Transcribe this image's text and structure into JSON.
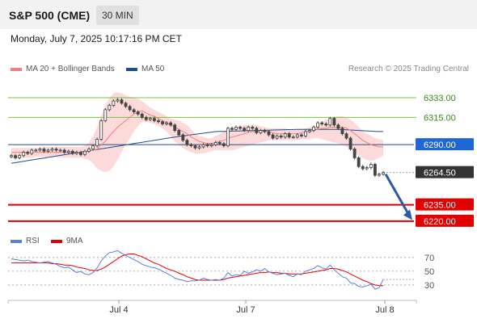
{
  "header": {
    "title": "S&P 500 (CME)",
    "timeframe": "30 MIN"
  },
  "datetime": "Monday, July 7, 2025 10:17:16 PM CET",
  "legend": [
    {
      "label": "MA 20 + Bollinger Bands",
      "color": "#f08080"
    },
    {
      "label": "MA 50",
      "color": "#1f4e8c"
    }
  ],
  "credit": "Research © 2025 Trading Central",
  "rsi_legend": [
    {
      "label": "RSI",
      "color": "#5b7fd6"
    },
    {
      "label": "9MA",
      "color": "#e00000"
    }
  ],
  "colors": {
    "support": "#e00000",
    "resistance": "#7cc242",
    "ma50": "#1f4e8c",
    "ma20": "#f08080",
    "band": "#fbd4d4",
    "candle": "#444444"
  },
  "chart_data": {
    "type": "candlestick",
    "yaxis_range": [
      6214,
      6350
    ],
    "x_ticks": [
      "Jul 4",
      "Jul 7",
      "Jul 8"
    ],
    "levels": [
      {
        "value": 6333.0,
        "label": "6333.00",
        "kind": "resistance"
      },
      {
        "value": 6315.0,
        "label": "6315.00",
        "kind": "resistance"
      },
      {
        "value": 6290.0,
        "label": "6290.00",
        "kind": "pivot"
      },
      {
        "value": 6264.5,
        "label": "6264.50",
        "kind": "last"
      },
      {
        "value": 6235.0,
        "label": "6235.00",
        "kind": "support"
      },
      {
        "value": 6220.0,
        "label": "6220.00",
        "kind": "support"
      }
    ],
    "close": [
      6280,
      6278,
      6280,
      6283,
      6282,
      6285,
      6285,
      6286,
      6284,
      6285,
      6286,
      6285,
      6285,
      6283,
      6284,
      6282,
      6283,
      6281,
      6284,
      6286,
      6289,
      6295,
      6312,
      6322,
      6326,
      6330,
      6331,
      6328,
      6325,
      6322,
      6320,
      6318,
      6315,
      6313,
      6314,
      6312,
      6311,
      6309,
      6310,
      6308,
      6303,
      6299,
      6294,
      6290,
      6289,
      6287,
      6288,
      6290,
      6289,
      6290,
      6292,
      6291,
      6289,
      6305,
      6304,
      6306,
      6305,
      6303,
      6306,
      6305,
      6301,
      6303,
      6302,
      6299,
      6296,
      6298,
      6297,
      6300,
      6297,
      6297,
      6299,
      6298,
      6302,
      6303,
      6306,
      6310,
      6309,
      6308,
      6314,
      6308,
      6305,
      6300,
      6296,
      6286,
      6278,
      6270,
      6268,
      6269,
      6272,
      6262,
      6263,
      6264.5
    ],
    "ma20": [
      6283,
      6283,
      6283,
      6283,
      6283,
      6283,
      6283,
      6283,
      6283,
      6283,
      6283,
      6283,
      6283,
      6283,
      6283,
      6283,
      6283,
      6283,
      6283,
      6284,
      6285,
      6286,
      6290,
      6293,
      6298,
      6302,
      6306,
      6309,
      6312,
      6315,
      6318,
      6320,
      6321,
      6319,
      6317,
      6316,
      6314,
      6312,
      6310,
      6308,
      6306,
      6304,
      6302,
      6300,
      6297,
      6295,
      6293,
      6292,
      6291,
      6291,
      6292,
      6293,
      6294,
      6296,
      6297,
      6298,
      6299,
      6300,
      6301,
      6302,
      6302,
      6302,
      6302,
      6302,
      6301,
      6300,
      6300,
      6300,
      6300,
      6300,
      6300,
      6301,
      6302,
      6302,
      6303,
      6304,
      6305,
      6305,
      6306,
      6306,
      6306,
      6306,
      6305,
      6303,
      6300,
      6297,
      6294,
      6292,
      6290,
      6289,
      6288,
      6288
    ],
    "bb_upper": [
      6287,
      6287,
      6287,
      6287,
      6287,
      6287,
      6287,
      6287,
      6288,
      6288,
      6288,
      6288,
      6288,
      6288,
      6288,
      6288,
      6288,
      6288,
      6289,
      6292,
      6298,
      6306,
      6316,
      6326,
      6333,
      6337,
      6338,
      6337,
      6335,
      6334,
      6333,
      6332,
      6330,
      6327,
      6324,
      6322,
      6320,
      6318,
      6316,
      6314,
      6313,
      6312,
      6310,
      6308,
      6304,
      6300,
      6298,
      6297,
      6296,
      6296,
      6298,
      6300,
      6302,
      6304,
      6305,
      6306,
      6307,
      6308,
      6308,
      6308,
      6308,
      6307,
      6306,
      6305,
      6305,
      6305,
      6305,
      6305,
      6304,
      6304,
      6304,
      6304,
      6305,
      6306,
      6307,
      6309,
      6311,
      6313,
      6314,
      6315,
      6316,
      6316,
      6315,
      6313,
      6310,
      6306,
      6303,
      6300,
      6298,
      6296,
      6295,
      6294
    ],
    "bb_lower": [
      6278,
      6278,
      6278,
      6278,
      6278,
      6278,
      6279,
      6279,
      6279,
      6279,
      6279,
      6279,
      6278,
      6278,
      6278,
      6278,
      6278,
      6278,
      6277,
      6276,
      6273,
      6268,
      6266,
      6265,
      6266,
      6270,
      6276,
      6283,
      6290,
      6296,
      6302,
      6307,
      6311,
      6311,
      6310,
      6309,
      6307,
      6305,
      6302,
      6298,
      6293,
      6290,
      6287,
      6285,
      6283,
      6282,
      6282,
      6282,
      6283,
      6284,
      6285,
      6285,
      6285,
      6285,
      6285,
      6286,
      6287,
      6288,
      6289,
      6290,
      6291,
      6292,
      6293,
      6294,
      6294,
      6294,
      6294,
      6294,
      6294,
      6294,
      6294,
      6295,
      6295,
      6295,
      6296,
      6296,
      6295,
      6294,
      6293,
      6292,
      6291,
      6290,
      6288,
      6286,
      6283,
      6280,
      6278,
      6276,
      6275,
      6276,
      6278,
      6280
    ],
    "ma50": [
      6273,
      6273.6,
      6274.2,
      6274.8,
      6275.4,
      6276,
      6276.6,
      6277.2,
      6277.8,
      6278.4,
      6279,
      6279.6,
      6280.2,
      6280.8,
      6281.4,
      6282,
      6282.6,
      6283.2,
      6283.8,
      6284.4,
      6285,
      6285.6,
      6286.2,
      6286.8,
      6287.4,
      6288,
      6288.6,
      6289.2,
      6289.8,
      6290.4,
      6291,
      6291.6,
      6292.2,
      6292.8,
      6293.4,
      6294,
      6294.6,
      6295.2,
      6295.8,
      6296.4,
      6297,
      6297.5,
      6298,
      6298.5,
      6299,
      6299.5,
      6300,
      6300.5,
      6301,
      6301.5,
      6302,
      6302.1,
      6302.2,
      6302.3,
      6302.4,
      6302.5,
      6302.6,
      6302.7,
      6302.8,
      6302.9,
      6303,
      6303.1,
      6303.2,
      6303.3,
      6303.4,
      6303.5,
      6303.6,
      6303.7,
      6303.8,
      6303.9,
      6304,
      6304,
      6304,
      6304,
      6304,
      6304,
      6304,
      6304,
      6304,
      6304,
      6304,
      6303.8,
      6303.6,
      6303.4,
      6303.2,
      6303,
      6302.8,
      6302.6,
      6302.4,
      6302.2,
      6302,
      6302
    ],
    "rsi_levels": [
      70,
      50,
      30
    ],
    "rsi_range": [
      10,
      85
    ],
    "rsi": [
      68,
      67,
      66,
      65,
      66,
      64,
      63,
      62,
      63,
      64,
      62,
      60,
      57,
      55,
      56,
      52,
      48,
      50,
      46,
      45,
      48,
      55,
      65,
      72,
      77,
      78,
      80,
      76,
      73,
      70,
      67,
      64,
      60,
      58,
      56,
      55,
      53,
      50,
      47,
      44,
      40,
      38,
      37,
      35,
      36,
      36,
      37,
      40,
      38,
      37,
      38,
      37,
      40,
      48,
      43,
      45,
      44,
      50,
      47,
      49,
      52,
      50,
      54,
      49,
      47,
      45,
      46,
      47,
      44,
      42,
      46,
      45,
      50,
      52,
      54,
      58,
      55,
      53,
      59,
      52,
      47,
      42,
      40,
      33,
      32,
      28,
      27,
      29,
      31,
      24,
      26,
      38
    ],
    "rsi_ma9": [
      62,
      62,
      62,
      62,
      62,
      62,
      62,
      62,
      62,
      62,
      61,
      61,
      60,
      59,
      59,
      58,
      56,
      55,
      54,
      52,
      51,
      51,
      53,
      56,
      60,
      64,
      68,
      72,
      74,
      75,
      75,
      73,
      71,
      68,
      65,
      62,
      60,
      57,
      54,
      52,
      50,
      47,
      45,
      42,
      40,
      38,
      37,
      37,
      37,
      37,
      37,
      37,
      38,
      40,
      41,
      42,
      43,
      44,
      45,
      46,
      47,
      48,
      48,
      49,
      48,
      48,
      47,
      47,
      46,
      46,
      46,
      46,
      47,
      48,
      49,
      50,
      51,
      52,
      54,
      54,
      53,
      51,
      49,
      46,
      43,
      40,
      37,
      35,
      32,
      30,
      29,
      29
    ]
  }
}
